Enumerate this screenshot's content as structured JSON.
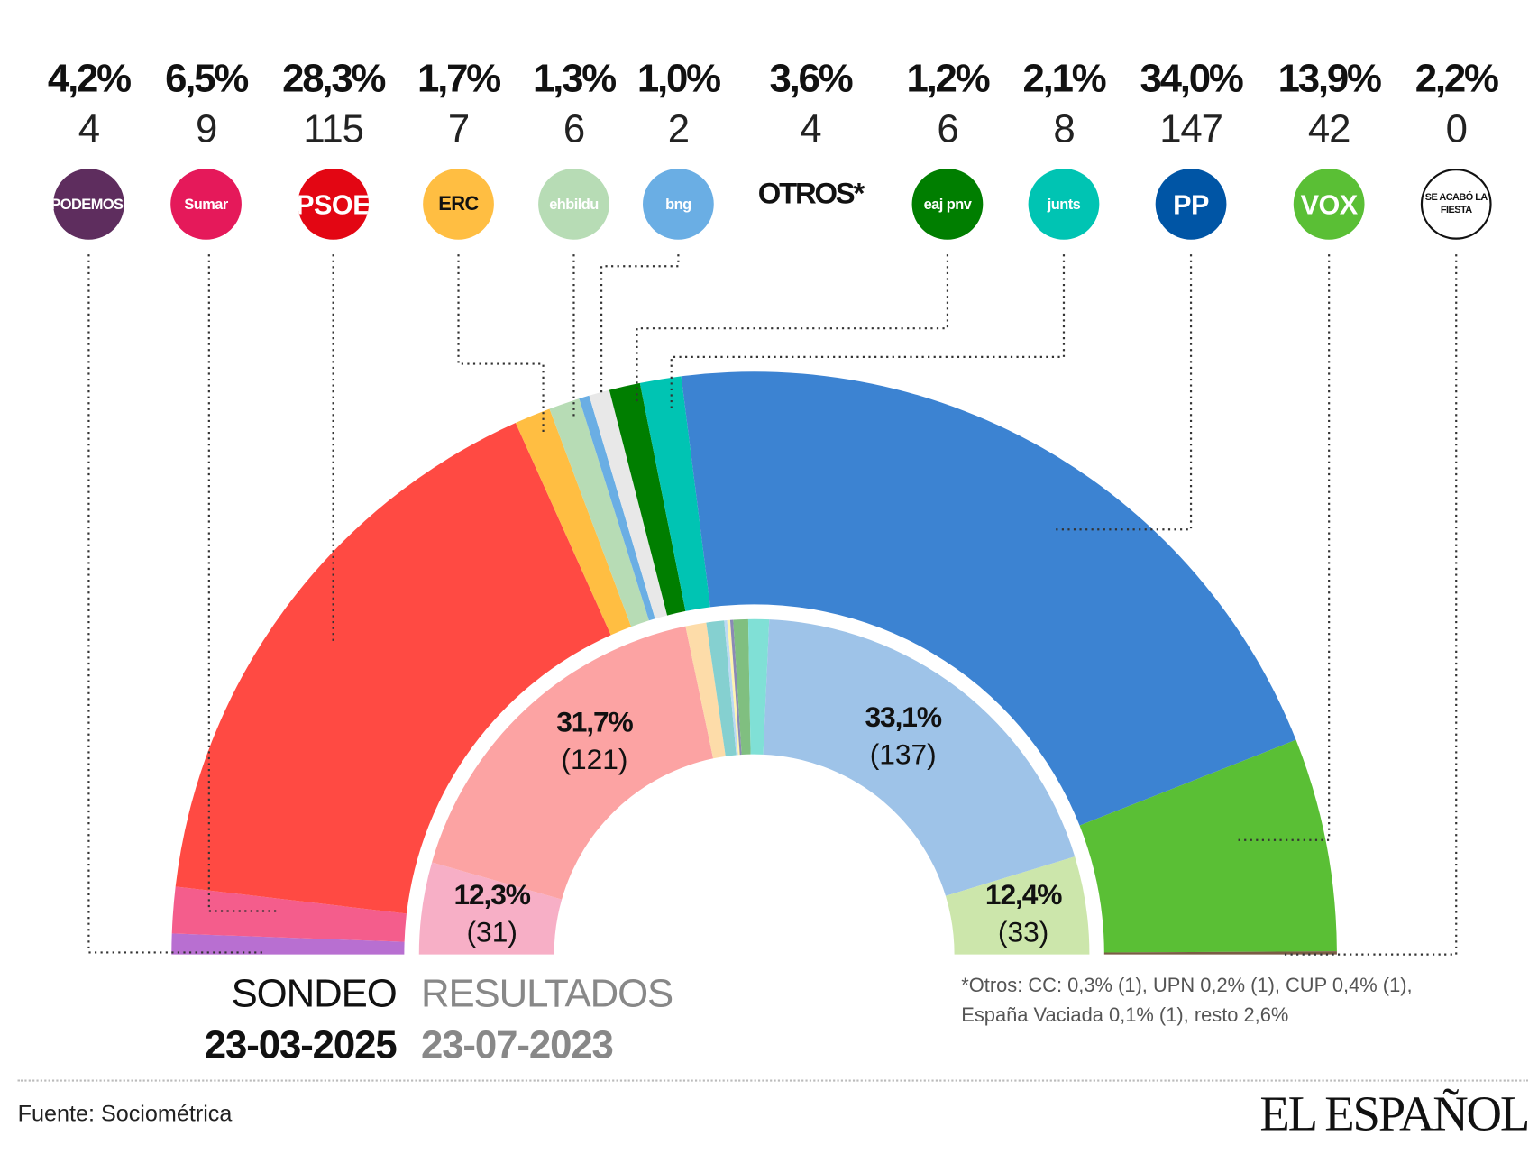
{
  "parties": [
    {
      "pct": "4,2%",
      "seats": "4",
      "logo": "PODEMOS.",
      "logo_color": "#5e2d5e",
      "color": "#b86fd1",
      "x": 90
    },
    {
      "pct": "6,5%",
      "seats": "9",
      "logo": "Sumar",
      "logo_color": "#e5195a",
      "color": "#f45d8c",
      "x": 209
    },
    {
      "pct": "28,3%",
      "seats": "115",
      "logo": "PSOE",
      "logo_color": "#e30613",
      "color": "#ff4a43",
      "x": 338
    },
    {
      "pct": "1,7%",
      "seats": "7",
      "logo": "ERC",
      "logo_color": "#ffbe42",
      "color": "#ffbe42",
      "x": 465
    },
    {
      "pct": "1,3%",
      "seats": "6",
      "logo": "ehbildu",
      "logo_color": "#b7dcb5",
      "color": "#b7dcb5",
      "x": 582
    },
    {
      "pct": "1,0%",
      "seats": "2",
      "logo": "bng",
      "logo_color": "#6aaee4",
      "color": "#6aaee4",
      "x": 688
    },
    {
      "pct": "3,6%",
      "seats": "4",
      "logo": "OTROS*",
      "logo_color": "",
      "color": "#e8e8e8",
      "x": 822
    },
    {
      "pct": "1,2%",
      "seats": "6",
      "logo": "eaj pnv",
      "logo_color": "#007e00",
      "color": "#007e00",
      "x": 961
    },
    {
      "pct": "2,1%",
      "seats": "8",
      "logo": "junts",
      "logo_color": "#00c4b3",
      "color": "#00c4b3",
      "x": 1079
    },
    {
      "pct": "34,0%",
      "seats": "147",
      "logo": "PP",
      "logo_color": "#0055a5",
      "color": "#3c83d2",
      "x": 1208
    },
    {
      "pct": "13,9%",
      "seats": "42",
      "logo": "VOX",
      "logo_color": "#5abf35",
      "color": "#5abf35",
      "x": 1348
    },
    {
      "pct": "2,2%",
      "seats": "0",
      "logo": "SE ACABÓ LA FIESTA",
      "logo_color": "#ffffff",
      "color": "#7a5c45",
      "x": 1477
    }
  ],
  "chart_data": {
    "type": "pie",
    "subtype": "parliament-semicircle",
    "series": [
      {
        "name": "SONDEO 23-03-2025",
        "ring": "outer",
        "categories": [
          "Podemos",
          "Sumar",
          "PSOE",
          "ERC",
          "EH Bildu",
          "BNG",
          "Otros",
          "PNV",
          "Junts",
          "PP",
          "Vox",
          "Se Acabó La Fiesta"
        ],
        "values": [
          4,
          9,
          115,
          7,
          6,
          2,
          4,
          6,
          8,
          147,
          42,
          0
        ],
        "pct": [
          4.2,
          6.5,
          28.3,
          1.7,
          1.3,
          1.0,
          3.6,
          1.2,
          2.1,
          34.0,
          13.9,
          2.2
        ]
      },
      {
        "name": "RESULTADOS 23-07-2023",
        "ring": "inner",
        "categories": [
          "Sumar",
          "PSOE",
          "ERC",
          "EH Bildu",
          "BNG",
          "CC",
          "UPN",
          "PNV",
          "Junts",
          "PP",
          "Vox"
        ],
        "values": [
          31,
          121,
          7,
          6,
          1,
          1,
          1,
          5,
          7,
          137,
          33
        ],
        "colors": [
          "#f7afc6",
          "#fca3a3",
          "#fddca9",
          "#85d0d0",
          "#bcd9f3",
          "#fff3b0",
          "#8a8ab5",
          "#80bf80",
          "#80e0d6",
          "#9ec3e8",
          "#cce6ab"
        ]
      }
    ],
    "total_seats": 350
  },
  "inner_labels": [
    {
      "pct": "31,7%",
      "seats": "(121)"
    },
    {
      "pct": "33,1%",
      "seats": "(137)"
    },
    {
      "pct": "12,3%",
      "seats": "(31)"
    },
    {
      "pct": "12,4%",
      "seats": "(33)"
    }
  ],
  "legend": {
    "sondeo": "SONDEO",
    "sondeo_date": "23-03-2025",
    "resultados": "RESULTADOS",
    "resultados_date": "23-07-2023"
  },
  "note": {
    "line1": "*Otros: CC: 0,3% (1), UPN 0,2% (1), CUP 0,4% (1),",
    "line2": "España Vaciada 0,1% (1), resto 2,6%"
  },
  "source": "Fuente: Sociométrica",
  "brand": "EL ESPAÑOL"
}
